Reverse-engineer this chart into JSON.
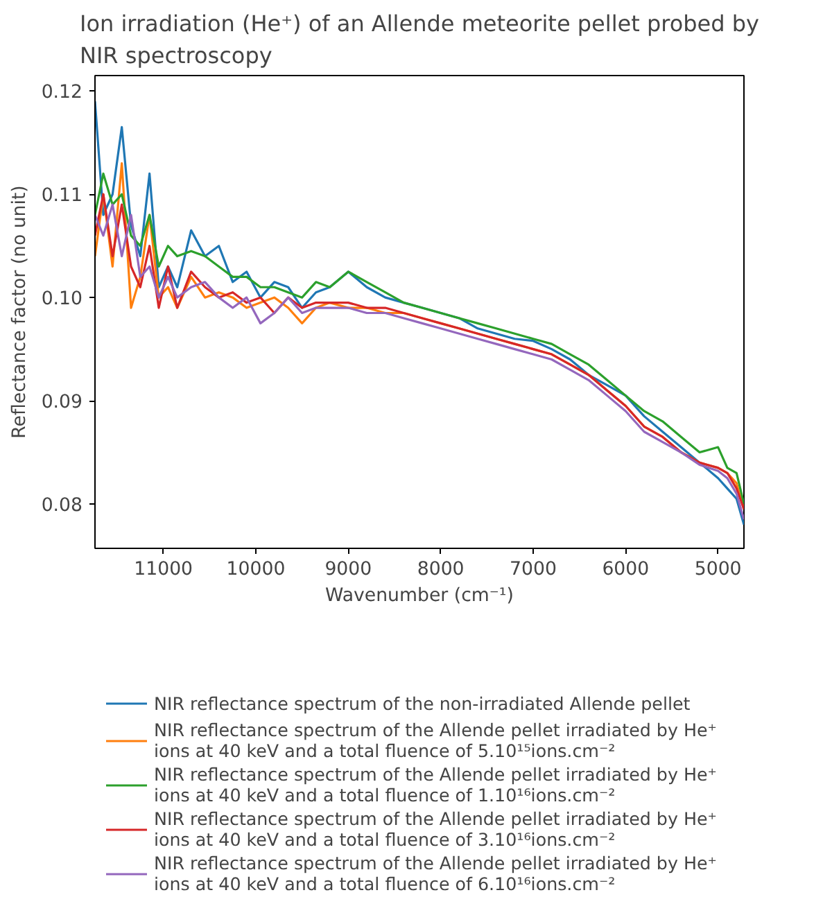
{
  "chart_data": {
    "type": "line",
    "title": "Ion irradiation (He⁺) of an Allende meteorite pellet probed by NIR spectroscopy",
    "xlabel": "Wavenumber (cm⁻¹)",
    "ylabel": "Reflectance factor (no unit)",
    "x": [
      11740,
      11650,
      11550,
      11450,
      11350,
      11250,
      11150,
      11050,
      10950,
      10850,
      10700,
      10550,
      10400,
      10250,
      10100,
      9950,
      9800,
      9650,
      9500,
      9350,
      9200,
      9000,
      8800,
      8600,
      8400,
      8200,
      8000,
      7800,
      7600,
      7400,
      7200,
      7000,
      6800,
      6600,
      6400,
      6200,
      6000,
      5800,
      5600,
      5400,
      5200,
      5000,
      4900,
      4800,
      4720
    ],
    "xlim": [
      11740,
      4720
    ],
    "xticks": [
      11000,
      10000,
      9000,
      8000,
      7000,
      6000,
      5000
    ],
    "ylim": [
      0.0757,
      0.1215
    ],
    "yticks": [
      0.08,
      0.09,
      {
        "value": 0.1,
        "label": "0.10"
      },
      0.11,
      0.12
    ],
    "grid": false,
    "legend": "bottom",
    "line_style": "solid",
    "series": [
      {
        "name": "NIR reflectance spectrum of the non-irradiated Allende pellet",
        "color": "#1f77b4",
        "values": [
          0.119,
          0.108,
          0.11,
          0.1165,
          0.107,
          0.104,
          0.112,
          0.101,
          0.103,
          0.101,
          0.1065,
          0.104,
          0.105,
          0.1015,
          0.1025,
          0.1,
          0.1015,
          0.101,
          0.099,
          0.1005,
          0.101,
          0.1025,
          0.101,
          0.1,
          0.0995,
          0.099,
          0.0985,
          0.098,
          0.097,
          0.0965,
          0.096,
          0.0958,
          0.095,
          0.094,
          0.0925,
          0.0915,
          0.0905,
          0.0885,
          0.087,
          0.0855,
          0.084,
          0.0825,
          0.0815,
          0.0805,
          0.078
        ]
      },
      {
        "name": "NIR reflectance spectrum of the Allende pellet irradiated by He⁺ ions at 40 keV and a total fluence of 5.10¹⁵ions.cm⁻²",
        "color": "#ff7f0e",
        "values": [
          0.104,
          0.11,
          0.103,
          0.113,
          0.099,
          0.102,
          0.108,
          0.1,
          0.101,
          0.099,
          0.102,
          0.1,
          0.1005,
          0.1,
          0.099,
          0.0995,
          0.1,
          0.099,
          0.0975,
          0.099,
          0.0995,
          0.099,
          0.099,
          0.0985,
          0.0985,
          0.098,
          0.0975,
          0.097,
          0.0965,
          0.096,
          0.0955,
          0.095,
          0.0945,
          0.0935,
          0.0925,
          0.091,
          0.0895,
          0.0875,
          0.0865,
          0.085,
          0.084,
          0.0835,
          0.083,
          0.082,
          0.0795
        ]
      },
      {
        "name": "NIR reflectance spectrum of the Allende pellet irradiated by He⁺ ions at 40 keV and a total fluence of 1.10¹⁶ions.cm⁻²",
        "color": "#2ca02c",
        "values": [
          0.108,
          0.112,
          0.109,
          0.11,
          0.106,
          0.105,
          0.108,
          0.103,
          0.105,
          0.104,
          0.1045,
          0.104,
          0.103,
          0.102,
          0.102,
          0.101,
          0.101,
          0.1005,
          0.1,
          0.1015,
          0.101,
          0.1025,
          0.1015,
          0.1005,
          0.0995,
          0.099,
          0.0985,
          0.098,
          0.0975,
          0.097,
          0.0965,
          0.096,
          0.0955,
          0.0945,
          0.0935,
          0.092,
          0.0905,
          0.089,
          0.088,
          0.0865,
          0.085,
          0.0855,
          0.0835,
          0.083,
          0.08
        ]
      },
      {
        "name": "NIR reflectance spectrum of the Allende pellet irradiated by He⁺ ions at 40 keV and a total fluence of 3.10¹⁶ions.cm⁻²",
        "color": "#d62728",
        "values": [
          0.106,
          0.11,
          0.104,
          0.109,
          0.103,
          0.101,
          0.105,
          0.099,
          0.103,
          0.099,
          0.1025,
          0.101,
          0.1,
          0.1005,
          0.0995,
          0.1,
          0.0985,
          0.1,
          0.099,
          0.0995,
          0.0995,
          0.0995,
          0.099,
          0.099,
          0.0985,
          0.098,
          0.0975,
          0.097,
          0.0965,
          0.096,
          0.0955,
          0.095,
          0.0945,
          0.0935,
          0.0925,
          0.091,
          0.0895,
          0.0875,
          0.0865,
          0.085,
          0.084,
          0.0835,
          0.083,
          0.0815,
          0.0795
        ]
      },
      {
        "name": "NIR reflectance spectrum of the Allende pellet irradiated by He⁺ ions at 40 keV and a total fluence of 6.10¹⁶ions.cm⁻²",
        "color": "#9467bd",
        "values": [
          0.108,
          0.106,
          0.109,
          0.104,
          0.108,
          0.102,
          0.103,
          0.1,
          0.102,
          0.1,
          0.101,
          0.1015,
          0.1,
          0.099,
          0.1,
          0.0975,
          0.0985,
          0.1,
          0.0985,
          0.099,
          0.099,
          0.099,
          0.0985,
          0.0985,
          0.098,
          0.0975,
          0.097,
          0.0965,
          0.096,
          0.0955,
          0.095,
          0.0945,
          0.094,
          0.093,
          0.092,
          0.0905,
          0.089,
          0.087,
          0.086,
          0.085,
          0.0838,
          0.0832,
          0.0825,
          0.081,
          0.0785
        ]
      }
    ]
  }
}
